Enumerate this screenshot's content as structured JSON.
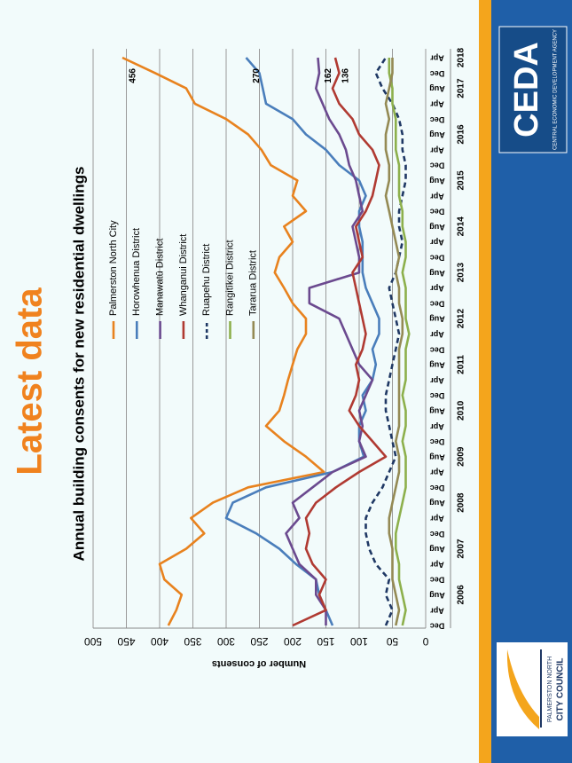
{
  "slide_title": "Latest data",
  "logos": {
    "ceda": "CEDA",
    "ceda_subtitle": "CENTRAL ECONOMIC DEVELOPMENT AGENCY",
    "council_top": "PALMERSTON NORTH",
    "council_bottom": "CITY COUNCIL"
  },
  "chart_data": {
    "type": "line",
    "title": "Annual building consents for new residential dwellings",
    "y_label": "Number of consents",
    "categories": [
      "Dec",
      "Apr",
      "Aug",
      "Dec",
      "Apr",
      "Aug",
      "Dec",
      "Apr",
      "Aug",
      "Dec",
      "Apr",
      "Aug",
      "Dec",
      "Apr",
      "Aug",
      "Dec",
      "Apr",
      "Aug",
      "Dec",
      "Apr",
      "Aug",
      "Dec",
      "Apr",
      "Aug",
      "Dec",
      "Apr",
      "Aug",
      "Dec",
      "Apr",
      "Aug",
      "Dec",
      "Apr",
      "Aug",
      "Dec",
      "Apr",
      "Aug",
      "Dec",
      "Apr"
    ],
    "years": [
      "2006",
      "2007",
      "2008",
      "2009",
      "2010",
      "2011",
      "2012",
      "2013",
      "2014",
      "2015",
      "2016",
      "2017",
      "2018"
    ],
    "ylim": [
      0,
      500
    ],
    "yticks": [
      0,
      50,
      100,
      150,
      200,
      250,
      300,
      350,
      400,
      450,
      500
    ],
    "grid": true,
    "series": [
      {
        "name": "Palmerston North City",
        "color": "#e8821e",
        "label_last": true,
        "values": [
          387,
          375,
          367,
          393,
          400,
          360,
          333,
          353,
          320,
          267,
          153,
          180,
          213,
          240,
          220,
          213,
          207,
          200,
          193,
          180,
          180,
          200,
          213,
          227,
          220,
          200,
          213,
          180,
          200,
          193,
          233,
          247,
          267,
          300,
          347,
          360,
          407,
          456
        ]
      },
      {
        "name": "Horowhenua District",
        "color": "#4a7ebb",
        "label_last": true,
        "values": [
          140,
          150,
          160,
          165,
          195,
          220,
          255,
          300,
          290,
          240,
          140,
          93,
          100,
          100,
          90,
          95,
          80,
          75,
          80,
          70,
          70,
          80,
          90,
          95,
          95,
          95,
          100,
          100,
          90,
          100,
          130,
          150,
          180,
          200,
          240,
          245,
          250,
          270
        ]
      },
      {
        "name": "Manawatū District",
        "color": "#6b4a8f",
        "label_last": true,
        "values": [
          150,
          150,
          165,
          165,
          190,
          200,
          210,
          190,
          200,
          170,
          140,
          90,
          100,
          95,
          100,
          90,
          80,
          100,
          110,
          120,
          130,
          175,
          175,
          100,
          100,
          105,
          110,
          95,
          100,
          105,
          115,
          120,
          130,
          145,
          155,
          165,
          160,
          162
        ]
      },
      {
        "name": "Whanganui District",
        "color": "#b03a32",
        "label_last": true,
        "values": [
          200,
          150,
          160,
          150,
          170,
          180,
          175,
          180,
          165,
          135,
          100,
          60,
          80,
          100,
          115,
          105,
          100,
          105,
          95,
          90,
          95,
          100,
          105,
          110,
          95,
          100,
          105,
          90,
          80,
          75,
          70,
          80,
          100,
          110,
          130,
          140,
          130,
          136
        ]
      },
      {
        "name": "Ruapehu District",
        "color": "#1f3864",
        "dashed": true,
        "values": [
          60,
          50,
          60,
          55,
          75,
          85,
          90,
          90,
          80,
          65,
          55,
          45,
          50,
          55,
          60,
          60,
          55,
          50,
          45,
          40,
          45,
          50,
          55,
          45,
          40,
          35,
          40,
          40,
          35,
          30,
          30,
          35,
          35,
          40,
          50,
          65,
          75,
          60
        ]
      },
      {
        "name": "Rangitīkei District",
        "color": "#8db04c",
        "values": [
          35,
          30,
          35,
          40,
          40,
          45,
          45,
          40,
          35,
          30,
          30,
          30,
          35,
          30,
          30,
          35,
          30,
          30,
          30,
          25,
          30,
          30,
          30,
          35,
          30,
          30,
          35,
          35,
          40,
          40,
          40,
          45,
          45,
          45,
          50,
          50,
          55,
          55
        ]
      },
      {
        "name": "Tararua District",
        "color": "#948a54",
        "values": [
          45,
          40,
          45,
          50,
          50,
          50,
          55,
          55,
          50,
          45,
          40,
          40,
          45,
          40,
          40,
          40,
          40,
          40,
          40,
          35,
          35,
          40,
          40,
          45,
          40,
          45,
          50,
          55,
          60,
          55,
          55,
          60,
          60,
          55,
          60,
          55,
          50,
          50
        ]
      }
    ]
  }
}
